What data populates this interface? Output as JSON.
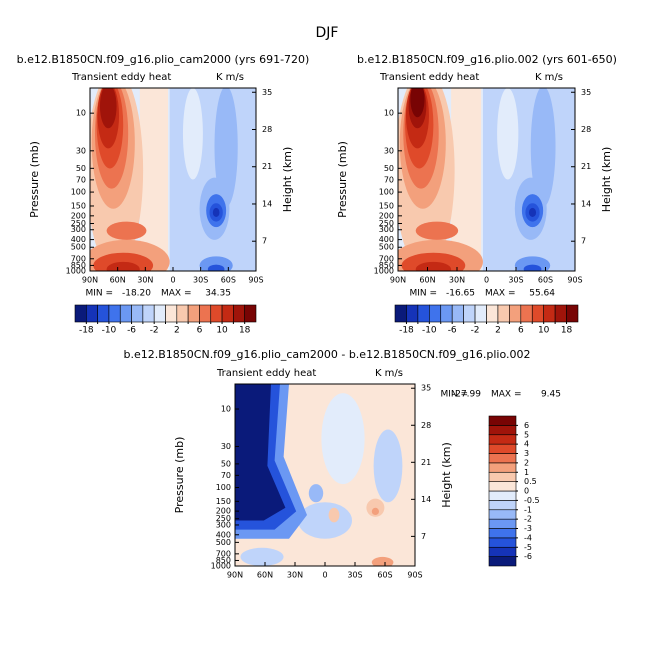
{
  "title": "DJF",
  "chart_data": [
    {
      "type": "contour",
      "title": "b.e12.B1850CN.f09_g16.plio_cam2000 (yrs 691-720)",
      "left_label": "Transient eddy heat",
      "right_label": "K m/s",
      "ylabel": "Pressure (mb)",
      "y2label": "Height (km)",
      "xlim": [
        90,
        -90
      ],
      "xticks": [
        {
          "value": 90,
          "label": "90N"
        },
        {
          "value": 60,
          "label": "60N"
        },
        {
          "value": 30,
          "label": "30N"
        },
        0,
        {
          "value": -30,
          "label": "30S"
        },
        {
          "value": -60,
          "label": "60S"
        },
        {
          "value": -90,
          "label": "90S"
        }
      ],
      "ylog": true,
      "ylim": [
        1000,
        4.8
      ],
      "yticks": [
        10,
        30,
        50,
        70,
        100,
        150,
        200,
        250,
        300,
        400,
        500,
        700,
        850,
        1000
      ],
      "y2lim": [
        1.4,
        35.8
      ],
      "y2ticks": [
        7,
        14,
        21,
        28,
        35
      ],
      "min_caption": "MIN =",
      "min": {
        "value": -18.2,
        "label": "-18.20"
      },
      "max_caption": "MAX =",
      "max": {
        "value": 34.35,
        "label": "34.35"
      },
      "colorbar": {
        "orientation": "horizontal",
        "levels": [
          -18,
          -14,
          -10,
          -8,
          -6,
          -4,
          -2,
          0,
          2,
          4,
          6,
          8,
          10,
          14,
          18
        ],
        "labeled_levels": [
          -18,
          -10,
          -6,
          -2,
          2,
          6,
          10,
          18
        ],
        "colors": [
          "#0a1a7a",
          "#1533b8",
          "#2553db",
          "#3f73ec",
          "#6b98f3",
          "#98b9f7",
          "#bfd4fa",
          "#e2ecfb",
          "#fbe6d8",
          "#f8c9ae",
          "#f3a07c",
          "#ec7350",
          "#df4a2a",
          "#c42a14",
          "#a0140a",
          "#780404"
        ]
      }
    },
    {
      "type": "contour",
      "title": "b.e12.B1850CN.f09_g16.plio.002 (yrs 601-650)",
      "left_label": "Transient eddy heat",
      "right_label": "K m/s",
      "ylabel": "Pressure (mb)",
      "y2label": "Height (km)",
      "xlim": [
        90,
        -90
      ],
      "xticks": [
        {
          "value": 90,
          "label": "90N"
        },
        {
          "value": 60,
          "label": "60N"
        },
        {
          "value": 30,
          "label": "30N"
        },
        0,
        {
          "value": -30,
          "label": "30S"
        },
        {
          "value": -60,
          "label": "60S"
        },
        {
          "value": -90,
          "label": "90S"
        }
      ],
      "ylog": true,
      "ylim": [
        1000,
        4.8
      ],
      "yticks": [
        10,
        30,
        50,
        70,
        100,
        150,
        200,
        250,
        300,
        400,
        500,
        700,
        850,
        1000
      ],
      "y2lim": [
        1.4,
        35.8
      ],
      "y2ticks": [
        7,
        14,
        21,
        28,
        35
      ],
      "min_caption": "MIN =",
      "min": {
        "value": -16.65,
        "label": "-16.65"
      },
      "max_caption": "MAX =",
      "max": {
        "value": 55.64,
        "label": "55.64"
      },
      "colorbar": {
        "orientation": "horizontal",
        "levels": [
          -18,
          -14,
          -10,
          -8,
          -6,
          -4,
          -2,
          0,
          2,
          4,
          6,
          8,
          10,
          14,
          18
        ],
        "labeled_levels": [
          -18,
          -10,
          -6,
          -2,
          2,
          6,
          10,
          18
        ],
        "colors": [
          "#0a1a7a",
          "#1533b8",
          "#2553db",
          "#3f73ec",
          "#6b98f3",
          "#98b9f7",
          "#bfd4fa",
          "#e2ecfb",
          "#fbe6d8",
          "#f8c9ae",
          "#f3a07c",
          "#ec7350",
          "#df4a2a",
          "#c42a14",
          "#a0140a",
          "#780404"
        ]
      }
    },
    {
      "type": "contour",
      "title": "b.e12.B1850CN.f09_g16.plio_cam2000 - b.e12.B1850CN.f09_g16.plio.002",
      "left_label": "Transient eddy heat",
      "right_label": "K m/s",
      "ylabel": "Pressure (mb)",
      "y2label": "Height (km)",
      "xlim": [
        90,
        -90
      ],
      "xticks": [
        {
          "value": 90,
          "label": "90N"
        },
        {
          "value": 60,
          "label": "60N"
        },
        {
          "value": 30,
          "label": "30N"
        },
        0,
        {
          "value": -30,
          "label": "30S"
        },
        {
          "value": -60,
          "label": "60S"
        },
        {
          "value": -90,
          "label": "90S"
        }
      ],
      "ylog": true,
      "ylim": [
        1000,
        4.8
      ],
      "yticks": [
        10,
        30,
        50,
        70,
        100,
        150,
        200,
        250,
        300,
        400,
        500,
        700,
        850,
        1000
      ],
      "y2lim": [
        1.4,
        35.8
      ],
      "y2ticks": [
        7,
        14,
        21,
        28,
        35
      ],
      "min_caption": "MIN =",
      "min": {
        "value": -27.99,
        "label": "-27.99"
      },
      "max_caption": "MAX =",
      "max": {
        "value": 9.45,
        "label": "9.45"
      },
      "colorbar": {
        "orientation": "vertical",
        "levels": [
          -6,
          -5,
          -4,
          -3,
          -2,
          -1,
          -0.5,
          0,
          0.5,
          1,
          2,
          3,
          4,
          5,
          6
        ],
        "labeled_levels": [
          -6,
          -5,
          -4,
          -3,
          -2,
          -1,
          -0.5,
          0,
          0.5,
          1,
          2,
          3,
          4,
          5,
          6
        ],
        "colors": [
          "#0a1a7a",
          "#1533b8",
          "#2553db",
          "#3f73ec",
          "#6b98f3",
          "#98b9f7",
          "#bfd4fa",
          "#e2ecfb",
          "#fbe6d8",
          "#f8c9ae",
          "#f3a07c",
          "#ec7350",
          "#df4a2a",
          "#c42a14",
          "#a0140a",
          "#780404"
        ]
      }
    }
  ]
}
